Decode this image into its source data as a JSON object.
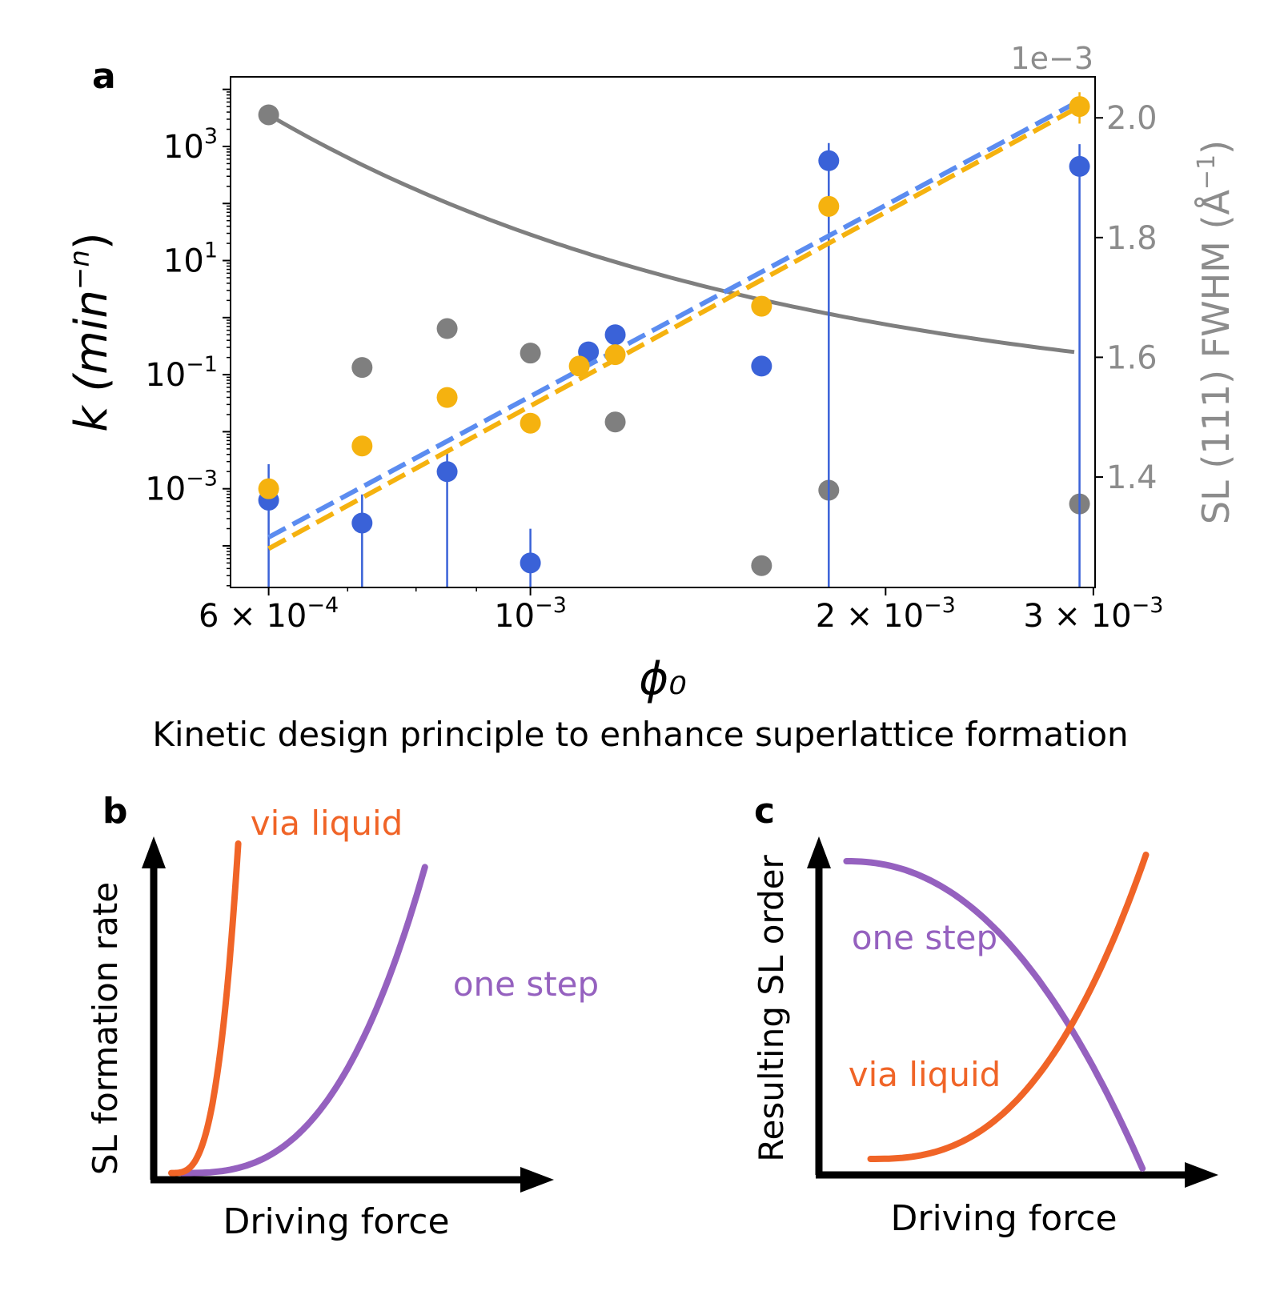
{
  "figure_title": "Kinetic design principle to enhance superlattice formation",
  "colors": {
    "blue": "#3a62d8",
    "blue_fit": "#5b8cf0",
    "orange": "#f5b20f",
    "gray": "#7f7f7f",
    "gray_axis": "#8c8c8c",
    "via_liquid": "#f06427",
    "one_step": "#9561bf",
    "black": "#000000"
  },
  "chart_data": [
    {
      "panel": "a",
      "type": "scatter",
      "xscale": "log",
      "xlabel": "ϕ₀",
      "xlim": [
        0.000557,
        0.00301
      ],
      "x_ticks": [
        {
          "value": 0.0006,
          "label_base": "6 × 10",
          "label_exp": "−4"
        },
        {
          "value": 0.001,
          "label_base": "10",
          "label_exp": "−3"
        },
        {
          "value": 0.002,
          "label_base": "2 × 10",
          "label_exp": "−3"
        },
        {
          "value": 0.003,
          "label_base": "3 × 10",
          "label_exp": "−3"
        }
      ],
      "x_minor_ticks": [
        0.0007,
        0.0008,
        0.0009
      ],
      "left_axis": {
        "label_base": "k (min",
        "label_exp": "−n",
        "label_close": ")",
        "scale": "log",
        "ylim_log10": [
          -4.73,
          4.22
        ],
        "ticks": [
          {
            "log10": 3,
            "label_base": "10",
            "label_exp": "3"
          },
          {
            "log10": 1,
            "label_base": "10",
            "label_exp": "1"
          },
          {
            "log10": -1,
            "label_base": "10",
            "label_exp": "−1"
          },
          {
            "log10": -3,
            "label_base": "10",
            "label_exp": "−3"
          }
        ]
      },
      "right_axis": {
        "label_main": "SL (111) FWHM (Å",
        "label_exp": "−1",
        "label_close": ")",
        "offset_text": "1e−3",
        "ylim": [
          1.2155,
          2.0685
        ],
        "ticks": [
          {
            "value": 2.0,
            "label": "2.0"
          },
          {
            "value": 1.8,
            "label": "1.8"
          },
          {
            "value": 1.6,
            "label": "1.6"
          },
          {
            "value": 1.4,
            "label": "1.4"
          }
        ]
      },
      "series": [
        {
          "name": "k (blue)",
          "axis": "left",
          "color": "blue",
          "x": [
            0.0006,
            0.00072,
            0.00085,
            0.001,
            0.00112,
            0.00118,
            0.00157,
            0.00179,
            0.00292
          ],
          "log10_y": [
            -3.2,
            -3.6,
            -2.7,
            -4.3,
            -0.6,
            -0.3,
            -0.85,
            2.75,
            2.65
          ],
          "error_log10": [
            [
              -4.73,
              -2.57
            ],
            [
              -4.73,
              -3.1
            ],
            [
              -4.73,
              -2.35
            ],
            [
              -4.73,
              -3.7
            ],
            null,
            null,
            null,
            [
              -4.73,
              3.06
            ],
            [
              -4.73,
              3.04
            ]
          ]
        },
        {
          "name": "k (orange)",
          "axis": "left",
          "color": "orange",
          "x": [
            0.0006,
            0.00072,
            0.00085,
            0.001,
            0.0011,
            0.00118,
            0.00157,
            0.00179,
            0.00292
          ],
          "log10_y": [
            -3.0,
            -2.25,
            -1.4,
            -1.85,
            -0.85,
            -0.65,
            0.2,
            1.95,
            3.7
          ],
          "error_log10": [
            null,
            null,
            null,
            null,
            null,
            null,
            null,
            null,
            [
              3.4,
              3.95
            ]
          ]
        },
        {
          "name": "SL (111) FWHM",
          "axis": "right",
          "color": "gray",
          "x": [
            0.0006,
            0.00072,
            0.00085,
            0.001,
            0.00118,
            0.00157,
            0.00179,
            0.00292
          ],
          "y": [
            2.005,
            1.583,
            1.648,
            1.607,
            1.492,
            1.252,
            1.378,
            1.355
          ]
        }
      ],
      "fits": [
        {
          "name": "blue fit",
          "axis": "left",
          "color": "blue_fit",
          "style": "dashed",
          "x": [
            0.0006,
            0.00292
          ],
          "log10_y": [
            -3.85,
            3.8
          ]
        },
        {
          "name": "orange fit",
          "axis": "left",
          "color": "orange",
          "style": "dashed",
          "x": [
            0.0006,
            0.00292
          ],
          "log10_y": [
            -4.05,
            3.7
          ]
        },
        {
          "name": "FWHM trend",
          "axis": "right",
          "color": "gray",
          "style": "solid",
          "x0": 0.0006,
          "x1": 0.00289,
          "A": 0.0003,
          "B": 1.505,
          "shape": "y = B + A / x"
        }
      ]
    },
    {
      "panel": "b",
      "type": "line",
      "schematic": true,
      "xlabel": "Driving force",
      "ylabel": "SL formation rate",
      "series": [
        {
          "name": "via liquid",
          "label": "via liquid",
          "color": "via_liquid",
          "x": [
            0.05,
            0.24
          ],
          "y": [
            0.02,
            1.0
          ]
        },
        {
          "name": "one step",
          "label": "one step",
          "color": "one_step",
          "x": [
            0.08,
            0.77
          ],
          "y": [
            0.02,
            0.93
          ]
        }
      ]
    },
    {
      "panel": "c",
      "type": "line",
      "schematic": true,
      "xlabel": "Driving force",
      "ylabel": "Resulting SL order",
      "series": [
        {
          "name": "one step",
          "label": "one step",
          "color": "one_step",
          "x": [
            0.08,
            0.94
          ],
          "y": [
            0.98,
            0.02
          ]
        },
        {
          "name": "via liquid",
          "label": "via liquid",
          "color": "via_liquid",
          "x": [
            0.15,
            0.95
          ],
          "y": [
            0.05,
            1.0
          ]
        }
      ]
    }
  ],
  "panel_labels": {
    "a": "a",
    "b": "b",
    "c": "c"
  }
}
